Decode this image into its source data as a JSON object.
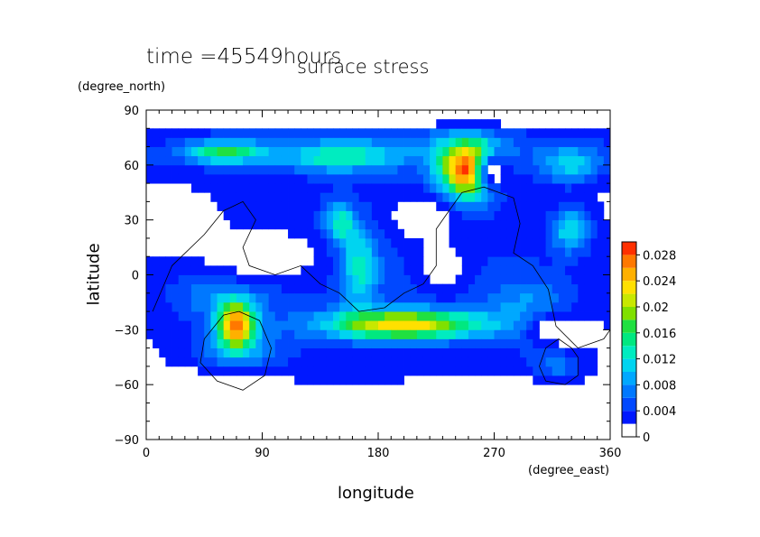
{
  "chart_data": {
    "type": "heatmap",
    "time_label": "time =45549hours",
    "title": "surface stress",
    "xlabel": "longitude",
    "ylabel": "latitude",
    "xunit": "(degree_east)",
    "yunit": "(degree_north)",
    "xlim": [
      0,
      360
    ],
    "ylim": [
      -90,
      90
    ],
    "xticks": [
      "0",
      "90",
      "180",
      "270",
      "360"
    ],
    "yticks": [
      "90",
      "60",
      "30",
      "0",
      "−30",
      "−60",
      "−90"
    ],
    "xtick_values": [
      0,
      90,
      180,
      270,
      360
    ],
    "ytick_values": [
      90,
      60,
      30,
      0,
      -30,
      -60,
      -90
    ],
    "colorbar": {
      "min": 0,
      "max": 0.03,
      "levels": [
        0,
        0.002,
        0.004,
        0.006,
        0.008,
        0.01,
        0.012,
        0.014,
        0.016,
        0.018,
        0.02,
        0.022,
        0.024,
        0.026,
        0.028,
        0.03
      ],
      "labels": [
        "0",
        "0.004",
        "0.008",
        "0.012",
        "0.016",
        "0.02",
        "0.024",
        "0.028"
      ],
      "label_values": [
        0,
        0.004,
        0.008,
        0.012,
        0.016,
        0.02,
        0.024,
        0.028
      ],
      "colors": [
        "#ffffff",
        "#0018ff",
        "#0048ff",
        "#0078ff",
        "#00a8ff",
        "#00d4f0",
        "#00ecc0",
        "#00e880",
        "#20e040",
        "#80e000",
        "#c8e800",
        "#ffe000",
        "#ffb000",
        "#ff7800",
        "#ff3000",
        "#f00000"
      ]
    },
    "blobs": [
      {
        "lon": 180,
        "lat": 0,
        "rlon": 200,
        "rlat": 80,
        "v": 0.0045
      },
      {
        "lon": 180,
        "lat": 70,
        "rlon": 200,
        "rlat": 14,
        "v": 0.005
      },
      {
        "lon": 60,
        "lat": 67,
        "rlon": 30,
        "rlat": 6,
        "v": 0.012
      },
      {
        "lon": 150,
        "lat": 64,
        "rlon": 40,
        "rlat": 7,
        "v": 0.008
      },
      {
        "lon": 250,
        "lat": 57,
        "rlon": 22,
        "rlat": 16,
        "v": 0.026
      },
      {
        "lon": 330,
        "lat": 60,
        "rlon": 25,
        "rlat": 10,
        "v": 0.008
      },
      {
        "lon": 330,
        "lat": 25,
        "rlon": 15,
        "rlat": 12,
        "v": 0.01
      },
      {
        "lon": 150,
        "lat": 28,
        "rlon": 12,
        "rlat": 12,
        "v": 0.01
      },
      {
        "lon": 165,
        "lat": 5,
        "rlon": 14,
        "rlat": 20,
        "v": 0.01
      },
      {
        "lon": 70,
        "lat": -27,
        "rlon": 14,
        "rlat": 12,
        "v": 0.022
      },
      {
        "lon": 200,
        "lat": -27,
        "rlon": 60,
        "rlat": 8,
        "v": 0.02
      },
      {
        "lon": 70,
        "lat": -45,
        "rlon": 35,
        "rlat": 16,
        "v": 0.007
      },
      {
        "lon": 320,
        "lat": -50,
        "rlon": 20,
        "rlat": 10,
        "v": 0.005
      },
      {
        "lon": 60,
        "lat": -10,
        "rlon": 40,
        "rlat": 15,
        "v": 0.006
      },
      {
        "lon": 300,
        "lat": -20,
        "rlon": 35,
        "rlat": 20,
        "v": 0.006
      }
    ],
    "white_gaps": [
      {
        "lon": 270,
        "lat": 56,
        "rlon": 15,
        "rlat": 12
      },
      {
        "lon": 90,
        "lat": 10,
        "rlon": 55,
        "rlat": 18
      },
      {
        "lon": 30,
        "lat": 25,
        "rlon": 25,
        "rlat": 15
      },
      {
        "lon": 215,
        "lat": 30,
        "rlon": 30,
        "rlat": 14
      },
      {
        "lon": 60,
        "lat": -60,
        "rlon": 60,
        "rlat": 12
      },
      {
        "lon": 260,
        "lat": -70,
        "rlon": 90,
        "rlat": 14
      },
      {
        "lon": 180,
        "lat": -80,
        "rlon": 200,
        "rlat": 12
      },
      {
        "lon": 180,
        "lat": 86,
        "rlon": 200,
        "rlat": 5
      },
      {
        "lon": 320,
        "lat": -30,
        "rlon": 30,
        "rlat": 12
      },
      {
        "lon": 230,
        "lat": 5,
        "rlon": 20,
        "rlat": 15
      }
    ],
    "continent_outlines": [
      [
        [
          330,
          -40
        ],
        [
          320,
          -35
        ],
        [
          310,
          -40
        ],
        [
          305,
          -50
        ],
        [
          310,
          -58
        ],
        [
          325,
          -60
        ],
        [
          335,
          -55
        ],
        [
          335,
          -45
        ],
        [
          330,
          -40
        ]
      ],
      [
        [
          72,
          -20
        ],
        [
          60,
          -22
        ],
        [
          45,
          -35
        ],
        [
          42,
          -48
        ],
        [
          55,
          -58
        ],
        [
          75,
          -63
        ],
        [
          92,
          -55
        ],
        [
          97,
          -40
        ],
        [
          88,
          -25
        ],
        [
          72,
          -20
        ]
      ],
      [
        [
          5,
          -20
        ],
        [
          20,
          5
        ],
        [
          45,
          22
        ],
        [
          60,
          35
        ],
        [
          75,
          40
        ],
        [
          85,
          30
        ],
        [
          75,
          15
        ],
        [
          80,
          5
        ],
        [
          100,
          0
        ],
        [
          120,
          5
        ],
        [
          135,
          -5
        ],
        [
          150,
          -10
        ],
        [
          165,
          -20
        ],
        [
          185,
          -18
        ],
        [
          200,
          -10
        ],
        [
          215,
          -5
        ],
        [
          225,
          5
        ],
        [
          225,
          25
        ],
        [
          235,
          35
        ],
        [
          245,
          45
        ],
        [
          262,
          48
        ],
        [
          285,
          42
        ],
        [
          290,
          28
        ],
        [
          285,
          12
        ],
        [
          300,
          5
        ],
        [
          312,
          -8
        ],
        [
          318,
          -28
        ],
        [
          335,
          -40
        ],
        [
          355,
          -35
        ],
        [
          360,
          -30
        ]
      ]
    ]
  }
}
